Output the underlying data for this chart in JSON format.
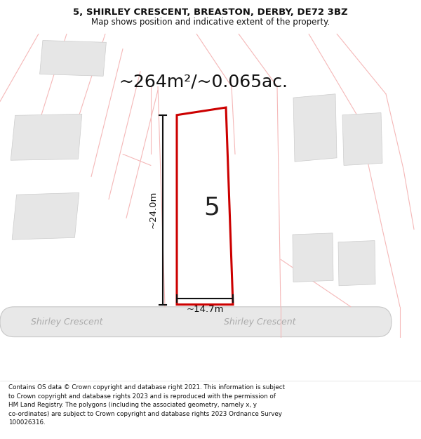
{
  "title": "5, SHIRLEY CRESCENT, BREASTON, DERBY, DE72 3BZ",
  "subtitle": "Map shows position and indicative extent of the property.",
  "area_text": "~264m²/~0.065ac.",
  "dim_vertical": "~24.0m",
  "dim_horizontal": "~14.7m",
  "plot_number": "5",
  "road_label_left": "Shirley Crescent",
  "road_label_right": "Shirley Crescent",
  "footer": "Contains OS data © Crown copyright and database right 2021. This information is subject\nto Crown copyright and database rights 2023 and is reproduced with the permission of\nHM Land Registry. The polygons (including the associated geometry, namely x, y\nco-ordinates) are subject to Crown copyright and database rights 2023 Ordnance Survey\n100026316.",
  "map_bg": "#ffffff",
  "bldg_fill": "#e6e6e6",
  "bldg_edge": "#cccccc",
  "plot_fill": "#ffffff",
  "plot_edge": "#cc0000",
  "pink": "#f5b8b8",
  "road_fill": "#e8e8e8",
  "road_edge": "#c8c8c8",
  "dim_color": "#111111",
  "text_color": "#111111",
  "title_fontsize": 9.5,
  "subtitle_fontsize": 8.5,
  "area_fontsize": 18,
  "dim_fontsize": 9.5,
  "plot_num_fontsize": 26,
  "road_label_fontsize": 9,
  "footer_fontsize": 6.3
}
